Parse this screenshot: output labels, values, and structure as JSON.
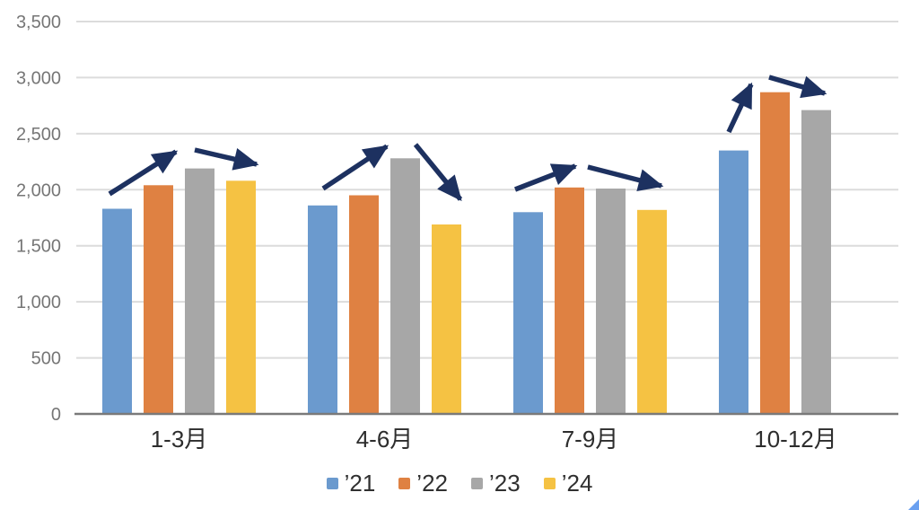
{
  "chart_data": {
    "type": "bar",
    "title": "",
    "xlabel": "",
    "ylabel": "",
    "categories": [
      "1-3月",
      "4-6月",
      "7-9月",
      "10-12月"
    ],
    "series": [
      {
        "name": "’21",
        "color": "#6b9ace",
        "values": [
          1830,
          1860,
          1800,
          2350
        ]
      },
      {
        "name": "’22",
        "color": "#df8142",
        "values": [
          2040,
          1950,
          2020,
          2870
        ]
      },
      {
        "name": "’23",
        "color": "#a7a7a7",
        "values": [
          2190,
          2280,
          2010,
          2710
        ]
      },
      {
        "name": "’24",
        "color": "#f5c243",
        "values": [
          2080,
          1690,
          1820,
          null
        ]
      }
    ],
    "ylim": [
      0,
      3500
    ],
    "ytick_step": 500,
    "ytick_labels": [
      "0",
      "500",
      "1,000",
      "1,500",
      "2,000",
      "2,500",
      "3,000",
      "3,500"
    ],
    "grid": true,
    "gridline_color": "#dcdcdc",
    "axis_line_color": "#7a7a7a",
    "legend_position": "bottom",
    "annotations": {
      "description": "trend arrows between bars",
      "color": "#1d3160",
      "arrows": [
        {
          "from": [
            122,
            216
          ],
          "to": [
            196,
            169
          ]
        },
        {
          "from": [
            217,
            167
          ],
          "to": [
            286,
            183
          ]
        },
        {
          "from": [
            360,
            210
          ],
          "to": [
            431,
            163
          ]
        },
        {
          "from": [
            463,
            161
          ],
          "to": [
            513,
            222
          ]
        },
        {
          "from": [
            574,
            211
          ],
          "to": [
            641,
            185
          ]
        },
        {
          "from": [
            655,
            186
          ],
          "to": [
            737,
            207
          ]
        },
        {
          "from": [
            812,
            147
          ],
          "to": [
            837,
            94
          ]
        },
        {
          "from": [
            857,
            86
          ],
          "to": [
            919,
            104
          ]
        }
      ]
    }
  },
  "decorations": {
    "corner_triangle_color": "#6aa0f0"
  }
}
